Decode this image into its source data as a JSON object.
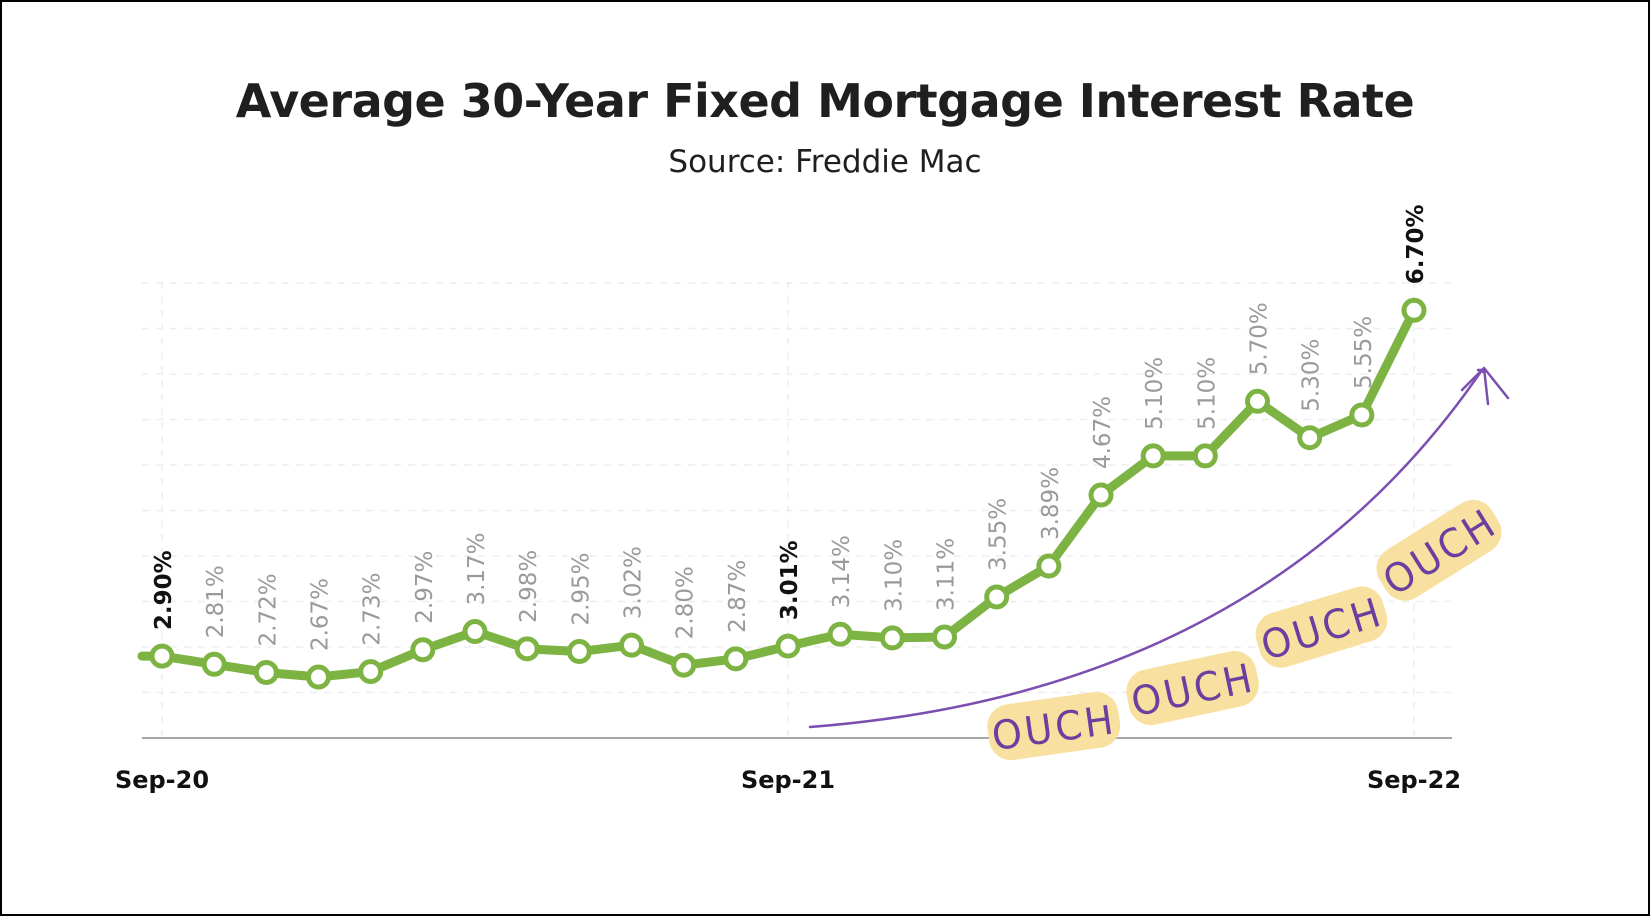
{
  "chart_data": {
    "type": "line",
    "title": "Average 30-Year Fixed Mortgage Interest Rate",
    "subtitle": "Source: Freddie Mac",
    "xlabel": "",
    "ylabel": "",
    "x_ticks": [
      "Sep-20",
      "Sep-21",
      "Sep-22"
    ],
    "ylim": [
      2.0,
      7.0
    ],
    "grid": true,
    "series": [
      {
        "color": "#7cb342",
        "points": [
          {
            "x": "Sep-20",
            "y": 2.9,
            "label": "2.90%",
            "highlight": true
          },
          {
            "x": "Oct-20",
            "y": 2.81,
            "label": "2.81%"
          },
          {
            "x": "Nov-20",
            "y": 2.72,
            "label": "2.72%"
          },
          {
            "x": "Dec-20",
            "y": 2.67,
            "label": "2.67%"
          },
          {
            "x": "Jan-21",
            "y": 2.73,
            "label": "2.73%"
          },
          {
            "x": "Feb-21",
            "y": 2.97,
            "label": "2.97%"
          },
          {
            "x": "Mar-21",
            "y": 3.17,
            "label": "3.17%"
          },
          {
            "x": "Apr-21",
            "y": 2.98,
            "label": "2.98%"
          },
          {
            "x": "May-21",
            "y": 2.95,
            "label": "2.95%"
          },
          {
            "x": "Jun-21",
            "y": 3.02,
            "label": "3.02%"
          },
          {
            "x": "Jul-21",
            "y": 2.8,
            "label": "2.80%"
          },
          {
            "x": "Aug-21",
            "y": 2.87,
            "label": "2.87%"
          },
          {
            "x": "Sep-21",
            "y": 3.01,
            "label": "3.01%",
            "highlight": true
          },
          {
            "x": "Oct-21",
            "y": 3.14,
            "label": "3.14%"
          },
          {
            "x": "Nov-21",
            "y": 3.1,
            "label": "3.10%"
          },
          {
            "x": "Dec-21",
            "y": 3.11,
            "label": "3.11%"
          },
          {
            "x": "Jan-22",
            "y": 3.55,
            "label": "3.55%"
          },
          {
            "x": "Feb-22",
            "y": 3.89,
            "label": "3.89%"
          },
          {
            "x": "Mar-22",
            "y": 4.67,
            "label": "4.67%"
          },
          {
            "x": "Apr-22",
            "y": 5.1,
            "label": "5.10%"
          },
          {
            "x": "May-22",
            "y": 5.1,
            "label": "5.10%"
          },
          {
            "x": "Jun-22",
            "y": 5.7,
            "label": "5.70%"
          },
          {
            "x": "Jul-22",
            "y": 5.3,
            "label": "5.30%"
          },
          {
            "x": "Aug-22",
            "y": 5.55,
            "label": "5.55%"
          },
          {
            "x": "Sep-22",
            "y": 6.7,
            "label": "6.70%",
            "highlight": true
          }
        ]
      }
    ],
    "annotations": [
      {
        "text": "OUCH",
        "highlight_color": "#f8e1a0",
        "text_color": "#6a3fa0"
      },
      {
        "text": "OUCH",
        "highlight_color": "#f8e1a0",
        "text_color": "#6a3fa0"
      },
      {
        "text": "OUCH",
        "highlight_color": "#f8e1a0",
        "text_color": "#6a3fa0"
      },
      {
        "text": "OUCH",
        "highlight_color": "#f8e1a0",
        "text_color": "#6a3fa0"
      }
    ],
    "arrow_color": "#7b4fb0",
    "label_color": "#9a9a9a",
    "highlight_label_color": "#111111"
  }
}
